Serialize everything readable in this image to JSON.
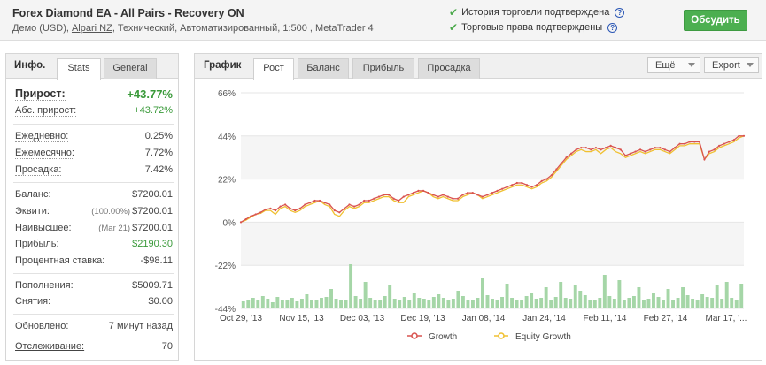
{
  "header": {
    "title": "Forex Diamond EA - All Pairs - Recovery ON",
    "subtitle_pre": "Демо (USD), ",
    "broker": "Alpari NZ",
    "subtitle_post": ", Технический, Автоматизированный, 1:500 , MetaTrader 4",
    "verified_history": "История торговли подтверждена",
    "verified_rights": "Торговые права подтверждены",
    "discuss_button": "Обсудить"
  },
  "left_panel": {
    "label": "Инфо.",
    "tabs": [
      "Stats",
      "General"
    ],
    "active_tab": "Stats",
    "gain_label": "Прирост:",
    "gain_value": "+43.77%",
    "abs_gain_label": "Абс. прирост:",
    "abs_gain_value": "+43.72%",
    "daily_label": "Ежедневно:",
    "daily_value": "0.25%",
    "monthly_label": "Ежемесячно:",
    "monthly_value": "7.72%",
    "drawdown_label": "Просадка:",
    "drawdown_value": "7.42%",
    "balance_label": "Баланс:",
    "balance_value": "$7200.01",
    "equity_label": "Эквити:",
    "equity_pct": "(100.00%)",
    "equity_value": "$7200.01",
    "highest_label": "Наивысшее:",
    "highest_date": "(Mar 21)",
    "highest_value": "$7200.01",
    "profit_label": "Прибыль:",
    "profit_value": "$2190.30",
    "interest_label": "Процентная ставка:",
    "interest_value": "-$98.11",
    "deposits_label": "Пополнения:",
    "deposits_value": "$5009.71",
    "withdrawals_label": "Снятия:",
    "withdrawals_value": "$0.00",
    "updated_label": "Обновлено:",
    "updated_value": "7 минут назад",
    "tracking_label": "Отслеживание:",
    "tracking_value": "70"
  },
  "right_panel": {
    "label": "График",
    "tabs": [
      "Рост",
      "Баланс",
      "Прибыль",
      "Просадка"
    ],
    "active_tab": "Рост",
    "more_dropdown": "Ещё",
    "export_dropdown": "Export"
  },
  "colors": {
    "growth": "#d9534f",
    "equity": "#f0c030",
    "bars": "#a5d6a7",
    "accent_green": "#4caf50"
  },
  "chart_data": {
    "type": "line",
    "y_ticks": [
      "66%",
      "44%",
      "22%",
      "0%",
      "-22%",
      "-44%"
    ],
    "ylim": [
      -44,
      66
    ],
    "x_ticks": [
      "Oct 29, '13",
      "Nov 15, '13",
      "Dec 03, '13",
      "Dec 19, '13",
      "Jan 08, '14",
      "Jan 24, '14",
      "Feb 11, '14",
      "Feb 27, '14",
      "Mar 17, '..."
    ],
    "legend": [
      "Growth",
      "Equity Growth"
    ],
    "series": [
      {
        "name": "Growth",
        "values": [
          0,
          1.5,
          3,
          4,
          5,
          6.5,
          7,
          6,
          8,
          9,
          7,
          6,
          7,
          9,
          10,
          11,
          11,
          10,
          9,
          6,
          5,
          7,
          9,
          8,
          9,
          11,
          11,
          12,
          13,
          14,
          14,
          12,
          11,
          13,
          14,
          15,
          16,
          16,
          15,
          14,
          13,
          14,
          13,
          12,
          12,
          14,
          15,
          15,
          14,
          13,
          14,
          15,
          16,
          17,
          18,
          19,
          20,
          20,
          19,
          18,
          19,
          21,
          22,
          24,
          27,
          30,
          33,
          35,
          37,
          38,
          38,
          37,
          38,
          37,
          38,
          39,
          38,
          37,
          34,
          35,
          36,
          37,
          36,
          37,
          38,
          38,
          37,
          36,
          38,
          40,
          40,
          41,
          41,
          41,
          32,
          36,
          37,
          39,
          40,
          41,
          42,
          44,
          44
        ]
      },
      {
        "name": "Equity Growth",
        "values": [
          0,
          1,
          2.5,
          4,
          4.5,
          6,
          6,
          4,
          7,
          8,
          6,
          5,
          6,
          8,
          9,
          10,
          11,
          9,
          8,
          4,
          3,
          6,
          8,
          7,
          8,
          10,
          10,
          11,
          12,
          13,
          13,
          11,
          10,
          10,
          13,
          14,
          15,
          16,
          15,
          13,
          12,
          13,
          12,
          11,
          11,
          13,
          14,
          15,
          14,
          12,
          13,
          14,
          15,
          16,
          17,
          18,
          19,
          19,
          18,
          17,
          18,
          20,
          21,
          23,
          26,
          29,
          32,
          34,
          36,
          37,
          36,
          36,
          37,
          35,
          37,
          38,
          36,
          35,
          33,
          34,
          35,
          36,
          35,
          36,
          37,
          37,
          36,
          35,
          37,
          39,
          39,
          40,
          40,
          40,
          32,
          35,
          36,
          38,
          39,
          40,
          41,
          43,
          44
        ]
      }
    ],
    "bars_note_free": true,
    "bars": [
      8,
      10,
      12,
      9,
      14,
      11,
      7,
      13,
      10,
      9,
      12,
      8,
      11,
      16,
      10,
      9,
      12,
      13,
      22,
      11,
      9,
      10,
      50,
      14,
      11,
      30,
      12,
      10,
      9,
      14,
      26,
      11,
      10,
      13,
      9,
      18,
      12,
      11,
      10,
      13,
      16,
      12,
      9,
      11,
      20,
      14,
      10,
      9,
      12,
      34,
      15,
      11,
      10,
      13,
      28,
      12,
      9,
      10,
      14,
      18,
      11,
      12,
      24,
      10,
      13,
      30,
      12,
      11,
      26,
      20,
      15,
      10,
      9,
      12,
      38,
      14,
      11,
      32,
      10,
      12,
      14,
      24,
      10,
      11,
      18,
      13,
      9,
      22,
      10,
      12,
      24,
      15,
      11,
      10,
      16,
      13,
      12,
      26,
      11,
      30,
      12,
      10,
      28
    ]
  }
}
